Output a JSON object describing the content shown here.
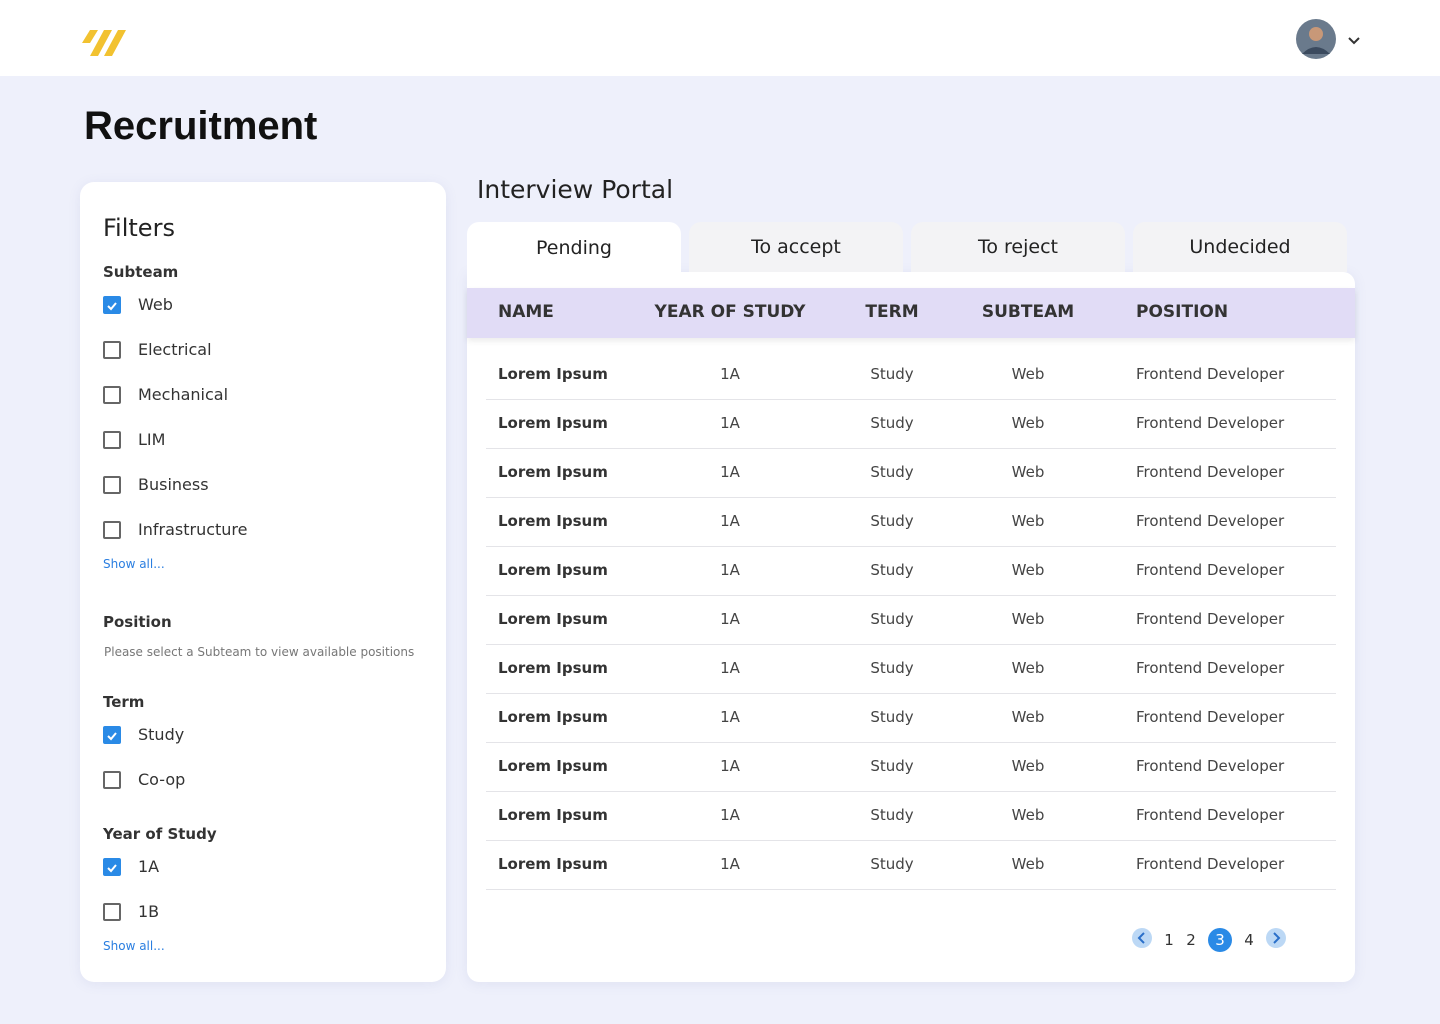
{
  "page": {
    "title": "Recruitment"
  },
  "filters": {
    "title": "Filters",
    "groups": [
      {
        "label": "Subteam",
        "options": [
          {
            "label": "Web",
            "checked": true
          },
          {
            "label": "Electrical",
            "checked": false
          },
          {
            "label": "Mechanical",
            "checked": false
          },
          {
            "label": "LIM",
            "checked": false
          },
          {
            "label": "Business",
            "checked": false
          },
          {
            "label": "Infrastructure",
            "checked": false
          }
        ],
        "show_all": "Show all..."
      },
      {
        "label": "Position",
        "note": "Please select a Subteam to view available positions"
      },
      {
        "label": "Term",
        "options": [
          {
            "label": "Study",
            "checked": true
          },
          {
            "label": "Co-op",
            "checked": false
          }
        ]
      },
      {
        "label": "Year of Study",
        "options": [
          {
            "label": "1A",
            "checked": true
          },
          {
            "label": "1B",
            "checked": false
          }
        ],
        "show_all": "Show all..."
      }
    ]
  },
  "portal": {
    "title": "Interview Portal",
    "tabs": [
      "Pending",
      "To accept",
      "To reject",
      "Undecided"
    ],
    "active_tab": 0,
    "columns": [
      "NAME",
      "YEAR OF STUDY",
      "TERM",
      "SUBTEAM",
      "POSITION"
    ],
    "rows": [
      [
        "Lorem Ipsum",
        "1A",
        "Study",
        "Web",
        "Frontend Developer"
      ],
      [
        "Lorem Ipsum",
        "1A",
        "Study",
        "Web",
        "Frontend Developer"
      ],
      [
        "Lorem Ipsum",
        "1A",
        "Study",
        "Web",
        "Frontend Developer"
      ],
      [
        "Lorem Ipsum",
        "1A",
        "Study",
        "Web",
        "Frontend Developer"
      ],
      [
        "Lorem Ipsum",
        "1A",
        "Study",
        "Web",
        "Frontend Developer"
      ],
      [
        "Lorem Ipsum",
        "1A",
        "Study",
        "Web",
        "Frontend Developer"
      ],
      [
        "Lorem Ipsum",
        "1A",
        "Study",
        "Web",
        "Frontend Developer"
      ],
      [
        "Lorem Ipsum",
        "1A",
        "Study",
        "Web",
        "Frontend Developer"
      ],
      [
        "Lorem Ipsum",
        "1A",
        "Study",
        "Web",
        "Frontend Developer"
      ],
      [
        "Lorem Ipsum",
        "1A",
        "Study",
        "Web",
        "Frontend Developer"
      ],
      [
        "Lorem Ipsum",
        "1A",
        "Study",
        "Web",
        "Frontend Developer"
      ]
    ],
    "pagination": {
      "pages": [
        1,
        2,
        3,
        4
      ],
      "current": 3
    }
  }
}
